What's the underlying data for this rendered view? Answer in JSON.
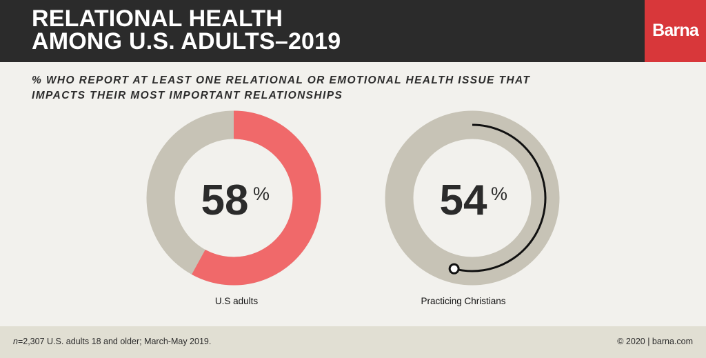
{
  "header": {
    "title_line1": "RELATIONAL HEALTH",
    "title_line2": "AMONG U.S. ADULTS–2019",
    "logo_text": "Barna"
  },
  "colors": {
    "header_bg": "#2b2b2b",
    "logo_bg": "#d8373a",
    "track": "#c7c3b6",
    "us_adults": "#f0696a",
    "practicing_christians": "#111111",
    "background": "#f2f1ed",
    "footer_bg": "#e1dfd3"
  },
  "chart_data": {
    "type": "pie",
    "title": "% WHO REPORT AT LEAST ONE RELATIONAL OR EMOTIONAL HEALTH ISSUE THAT IMPACTS THEIR MOST IMPORTANT RELATIONSHIPS",
    "subtitle_line1": "% WHO REPORT AT LEAST ONE RELATIONAL OR EMOTIONAL HEALTH ISSUE THAT",
    "subtitle_line2": "IMPACTS THEIR MOST IMPORTANT RELATIONSHIPS",
    "unit": "%",
    "groups": [
      {
        "label": "U.S adults",
        "value": 58,
        "style": "filled"
      },
      {
        "label": "Practicing Christians",
        "value": 54,
        "style": "line"
      }
    ]
  },
  "footer": {
    "note_n": "n",
    "note_rest": "=2,307 U.S. adults 18 and older; March-May 2019.",
    "copyright": "© 2020 | barna.com"
  }
}
